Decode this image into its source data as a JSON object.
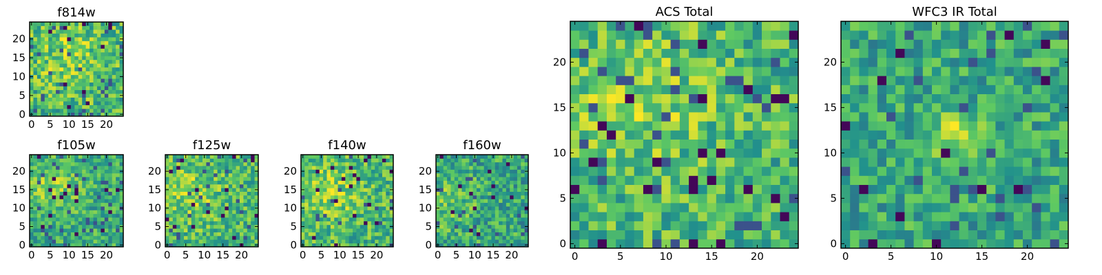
{
  "figure_title": "",
  "colormap": {
    "name": "viridis",
    "stops": [
      "#440154",
      "#3b528b",
      "#21918c",
      "#5ec962",
      "#fde725"
    ]
  },
  "chart_data": [
    {
      "type": "heatmap",
      "id": "f814w",
      "title": "f814w",
      "grid_size": 25,
      "xticks": [
        0,
        5,
        10,
        15,
        20
      ],
      "yticks": [
        0,
        5,
        10,
        15,
        20
      ],
      "xlim": [
        0,
        24
      ],
      "ylim": [
        0,
        24
      ],
      "seed": 11,
      "mean": 0.66,
      "spread": 0.24,
      "hot_spot": [
        10,
        16,
        0.14,
        7
      ]
    },
    {
      "type": "heatmap",
      "id": "f105w",
      "title": "f105w",
      "grid_size": 25,
      "xticks": [
        0,
        5,
        10,
        15,
        20
      ],
      "yticks": [
        0,
        5,
        10,
        15,
        20
      ],
      "xlim": [
        0,
        24
      ],
      "ylim": [
        0,
        24
      ],
      "seed": 23,
      "mean": 0.62,
      "spread": 0.2,
      "hot_spot": [
        6,
        16,
        0.2,
        5
      ]
    },
    {
      "type": "heatmap",
      "id": "f125w",
      "title": "f125w",
      "grid_size": 25,
      "xticks": [
        0,
        5,
        10,
        15,
        20
      ],
      "yticks": [
        0,
        5,
        10,
        15,
        20
      ],
      "xlim": [
        0,
        24
      ],
      "ylim": [
        0,
        24
      ],
      "seed": 37,
      "mean": 0.66,
      "spread": 0.22,
      "hot_spot": [
        6,
        14,
        0.15,
        6
      ]
    },
    {
      "type": "heatmap",
      "id": "f140w",
      "title": "f140w",
      "grid_size": 25,
      "xticks": [
        0,
        5,
        10,
        15,
        20
      ],
      "yticks": [
        0,
        5,
        10,
        15,
        20
      ],
      "xlim": [
        0,
        24
      ],
      "ylim": [
        0,
        24
      ],
      "seed": 41,
      "mean": 0.66,
      "spread": 0.22,
      "hot_spot": [
        8,
        14,
        0.16,
        6
      ]
    },
    {
      "type": "heatmap",
      "id": "f160w",
      "title": "f160w",
      "grid_size": 25,
      "xticks": [
        0,
        5,
        10,
        15,
        20
      ],
      "yticks": [
        0,
        5,
        10,
        15,
        20
      ],
      "xlim": [
        0,
        24
      ],
      "ylim": [
        0,
        24
      ],
      "seed": 53,
      "mean": 0.6,
      "spread": 0.22,
      "hot_spot": [
        3,
        12,
        0.15,
        5
      ]
    },
    {
      "type": "heatmap",
      "id": "acs-total",
      "title": "ACS Total",
      "grid_size": 25,
      "xticks": [
        0,
        5,
        10,
        15,
        20
      ],
      "yticks": [
        0,
        5,
        10,
        15,
        20
      ],
      "xlim": [
        0,
        24
      ],
      "ylim": [
        0,
        24
      ],
      "seed": 67,
      "mean": 0.66,
      "spread": 0.22,
      "hot_spot": [
        7,
        16,
        0.15,
        6
      ]
    },
    {
      "type": "heatmap",
      "id": "wfc3-ir-total",
      "title": "WFC3 IR Total",
      "grid_size": 25,
      "xticks": [
        0,
        5,
        10,
        15,
        20
      ],
      "yticks": [
        0,
        5,
        10,
        15,
        20
      ],
      "xlim": [
        0,
        24
      ],
      "ylim": [
        0,
        24
      ],
      "seed": 79,
      "mean": 0.6,
      "spread": 0.2,
      "hot_spot": [
        12,
        12,
        0.3,
        2
      ]
    }
  ]
}
